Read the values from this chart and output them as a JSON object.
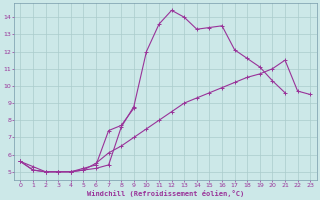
{
  "xlabel": "Windchill (Refroidissement éolien,°C)",
  "line_color": "#993399",
  "bg_color": "#cce8e8",
  "grid_color": "#aacccc",
  "xlim": [
    -0.5,
    23.5
  ],
  "ylim": [
    4.5,
    14.8
  ],
  "xticks": [
    0,
    1,
    2,
    3,
    4,
    5,
    6,
    7,
    8,
    9,
    10,
    11,
    12,
    13,
    14,
    15,
    16,
    17,
    18,
    19,
    20,
    21,
    22,
    23
  ],
  "yticks": [
    5,
    6,
    7,
    8,
    9,
    10,
    11,
    12,
    13,
    14
  ],
  "line1_x": [
    0,
    1,
    2,
    3,
    4,
    5,
    6,
    7,
    8,
    9,
    10,
    11,
    12,
    13,
    14,
    15,
    16,
    17,
    18,
    19,
    20,
    21
  ],
  "line1_y": [
    5.6,
    5.1,
    5.0,
    5.0,
    5.0,
    5.1,
    5.2,
    5.4,
    7.6,
    8.8,
    12.0,
    13.6,
    14.4,
    14.0,
    13.3,
    13.4,
    13.5,
    12.1,
    11.6,
    11.1,
    10.3,
    9.6
  ],
  "line2_x": [
    0,
    1,
    2,
    3,
    4,
    5,
    6,
    7,
    8,
    9
  ],
  "line2_y": [
    5.6,
    5.1,
    5.0,
    5.0,
    5.0,
    5.2,
    5.4,
    7.4,
    7.7,
    8.7
  ],
  "line3_x": [
    0,
    1,
    2,
    3,
    4,
    5,
    6,
    7,
    8,
    9,
    10,
    11,
    12,
    13,
    14,
    15,
    16,
    17,
    18,
    19,
    20,
    21,
    22,
    23
  ],
  "line3_y": [
    5.6,
    5.3,
    5.0,
    5.0,
    5.0,
    5.1,
    5.5,
    6.1,
    6.5,
    7.0,
    7.5,
    8.0,
    8.5,
    9.0,
    9.3,
    9.6,
    9.9,
    10.2,
    10.5,
    10.7,
    11.0,
    11.5,
    9.7,
    9.5
  ]
}
